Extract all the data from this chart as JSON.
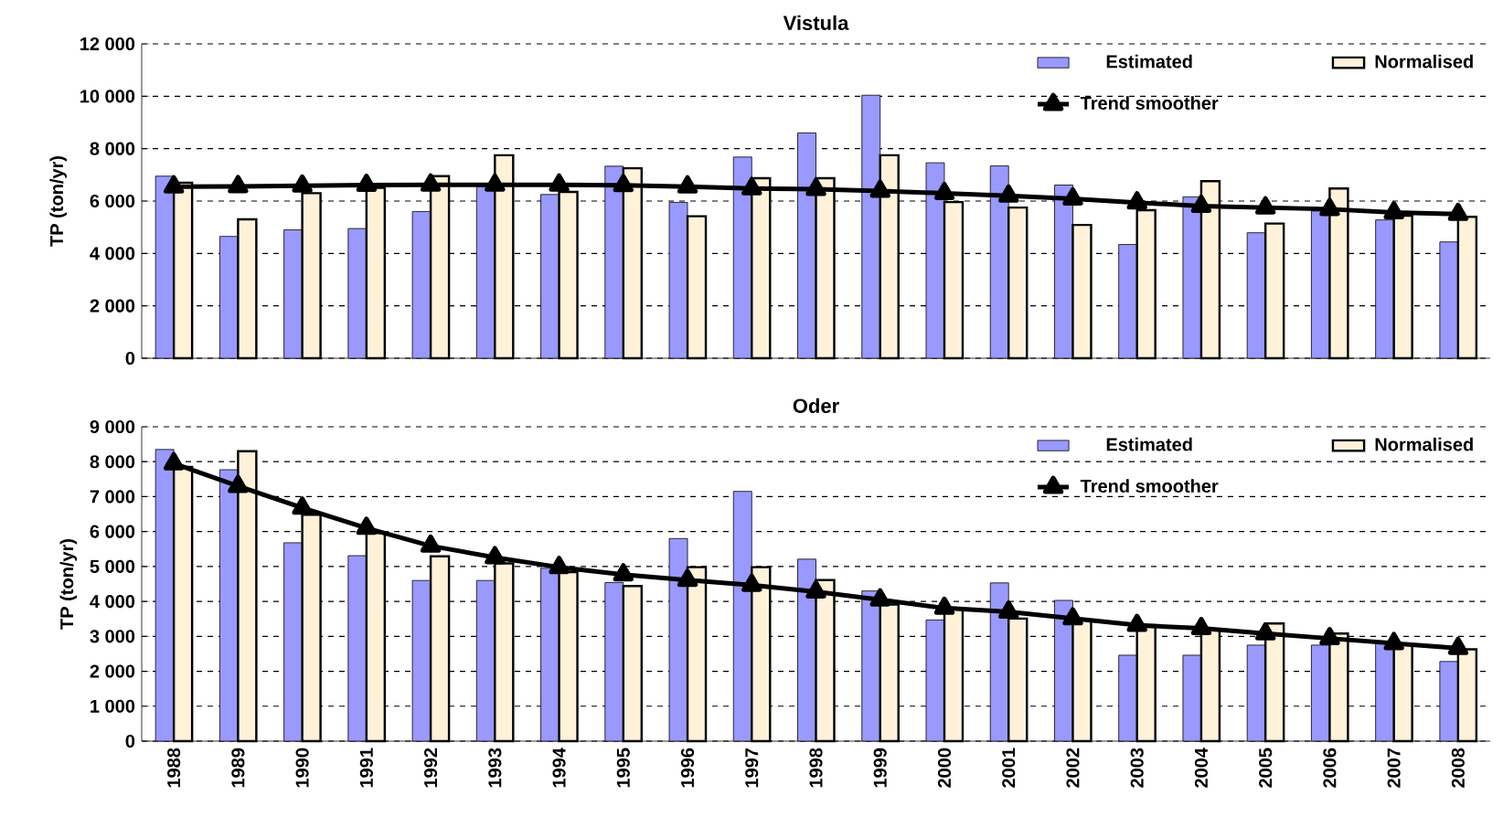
{
  "chart_data": [
    {
      "type": "bar",
      "title": "Vistula",
      "ylabel": "TP (ton/yr)",
      "categories": [
        "1988",
        "1989",
        "1990",
        "1991",
        "1992",
        "1993",
        "1994",
        "1995",
        "1996",
        "1997",
        "1998",
        "1999",
        "2000",
        "2001",
        "2002",
        "2003",
        "2004",
        "2005",
        "2006",
        "2007",
        "2008"
      ],
      "series": [
        {
          "name": "Estimated",
          "color": "#9999ff",
          "values": [
            6950,
            4650,
            4900,
            4950,
            5600,
            6550,
            6250,
            7330,
            5950,
            7680,
            8600,
            10040,
            7460,
            7340,
            6610,
            4340,
            6160,
            4790,
            5620,
            5280,
            4440
          ]
        },
        {
          "name": "Normalised",
          "color": "#fff2d9",
          "values": [
            6700,
            5300,
            6300,
            6500,
            6950,
            7750,
            6350,
            7250,
            5420,
            6870,
            6870,
            7750,
            5960,
            5750,
            5090,
            5650,
            6760,
            5140,
            6480,
            5440,
            5400
          ]
        },
        {
          "name": "Trend smoother",
          "type": "line",
          "color": "#000000",
          "marker": "triangle",
          "values": [
            6550,
            6560,
            6580,
            6610,
            6620,
            6620,
            6620,
            6600,
            6550,
            6480,
            6450,
            6380,
            6300,
            6200,
            6090,
            5940,
            5810,
            5750,
            5690,
            5560,
            5500
          ]
        }
      ],
      "ylim": [
        0,
        12000
      ],
      "yticks": [
        {
          "value": 0,
          "label": "0"
        },
        {
          "value": 2000,
          "label": "2 000"
        },
        {
          "value": 4000,
          "label": "4 000"
        },
        {
          "value": 6000,
          "label": "6 000"
        },
        {
          "value": 8000,
          "label": "8 000"
        },
        {
          "value": 10000,
          "label": "10 000"
        },
        {
          "value": 12000,
          "label": "12 000"
        }
      ],
      "grid": "y",
      "legend": "top right",
      "tick_labels": "y"
    },
    {
      "type": "bar",
      "title": "Oder",
      "ylabel": "TP (ton/yr)",
      "categories": [
        "1988",
        "1989",
        "1990",
        "1991",
        "1992",
        "1993",
        "1994",
        "1995",
        "1996",
        "1997",
        "1998",
        "1999",
        "2000",
        "2001",
        "2002",
        "2003",
        "2004",
        "2005",
        "2006",
        "2007",
        "2008"
      ],
      "series": [
        {
          "name": "Estimated",
          "color": "#9999ff",
          "values": [
            8350,
            7770,
            5680,
            5310,
            4600,
            4600,
            4950,
            4540,
            5800,
            7150,
            5210,
            4300,
            3470,
            4530,
            4030,
            2460,
            2460,
            2750,
            2750,
            2850,
            2280
          ]
        },
        {
          "name": "Normalised",
          "color": "#fff2d9",
          "values": [
            7850,
            8300,
            6480,
            5960,
            5290,
            5090,
            4840,
            4440,
            4980,
            4980,
            4610,
            3910,
            3770,
            3510,
            3470,
            3270,
            3180,
            3370,
            3080,
            2750,
            2630
          ]
        },
        {
          "name": "Trend smoother",
          "type": "line",
          "color": "#000000",
          "marker": "triangle",
          "values": [
            7950,
            7300,
            6680,
            6100,
            5590,
            5260,
            4980,
            4770,
            4610,
            4470,
            4280,
            4050,
            3810,
            3700,
            3510,
            3320,
            3230,
            3080,
            2940,
            2800,
            2660
          ]
        }
      ],
      "ylim": [
        0,
        9000
      ],
      "yticks": [
        {
          "value": 0,
          "label": "0"
        },
        {
          "value": 1000,
          "label": "1 000"
        },
        {
          "value": 2000,
          "label": "2 000"
        },
        {
          "value": 3000,
          "label": "3 000"
        },
        {
          "value": 4000,
          "label": "4 000"
        },
        {
          "value": 5000,
          "label": "5 000"
        },
        {
          "value": 6000,
          "label": "6 000"
        },
        {
          "value": 7000,
          "label": "7 000"
        },
        {
          "value": 8000,
          "label": "8 000"
        },
        {
          "value": 9000,
          "label": "9 000"
        }
      ],
      "grid": "y",
      "legend": "top right"
    }
  ]
}
